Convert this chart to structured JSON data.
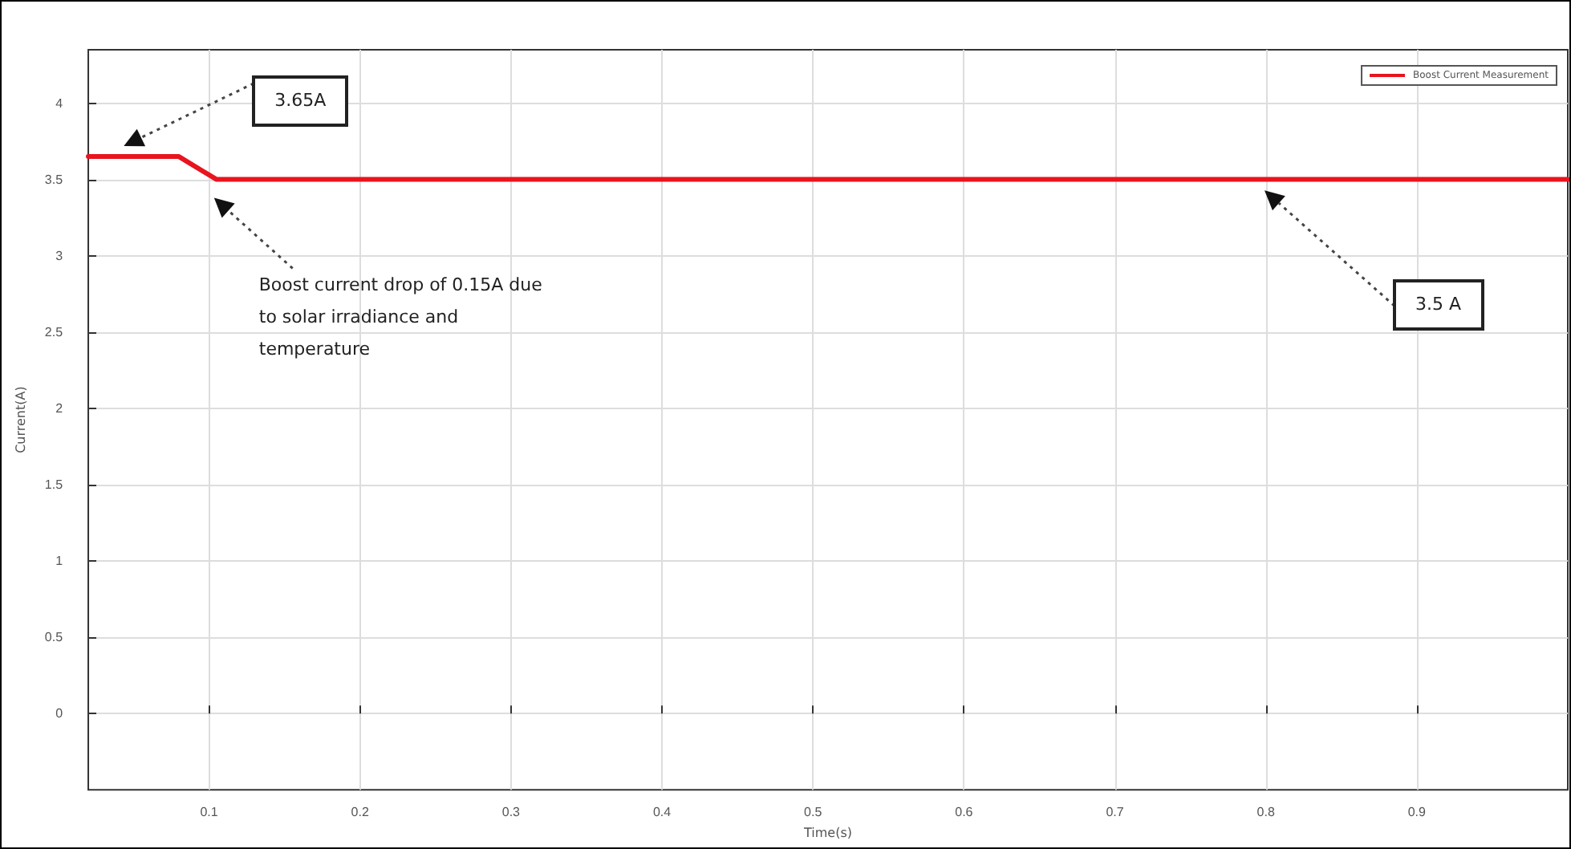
{
  "chart_data": {
    "type": "line",
    "xlabel": "Time(s)",
    "ylabel": "Current(A)",
    "x": [
      0.02,
      0.08,
      0.105,
      1.0
    ],
    "series": [
      {
        "name": "Boost Current Measurement",
        "color": "#e8141e",
        "values": [
          3.65,
          3.65,
          3.5,
          3.5
        ]
      }
    ],
    "xlim": [
      0.02,
      1.0
    ],
    "xticks": [
      0.1,
      0.2,
      0.3,
      0.4,
      0.5,
      0.6,
      0.7,
      0.8,
      0.9
    ],
    "ylim": [
      -0.5,
      4.35
    ],
    "yticks": [
      0,
      0.5,
      1,
      1.5,
      2,
      2.5,
      3,
      3.5,
      4
    ],
    "grid": true,
    "legend": "top right",
    "marker": "none",
    "line_style": "solid",
    "annotations": [
      "3.65A",
      "Boost current drop of 0.15A due to solar irradiance and temperature",
      "3.5 A"
    ]
  }
}
